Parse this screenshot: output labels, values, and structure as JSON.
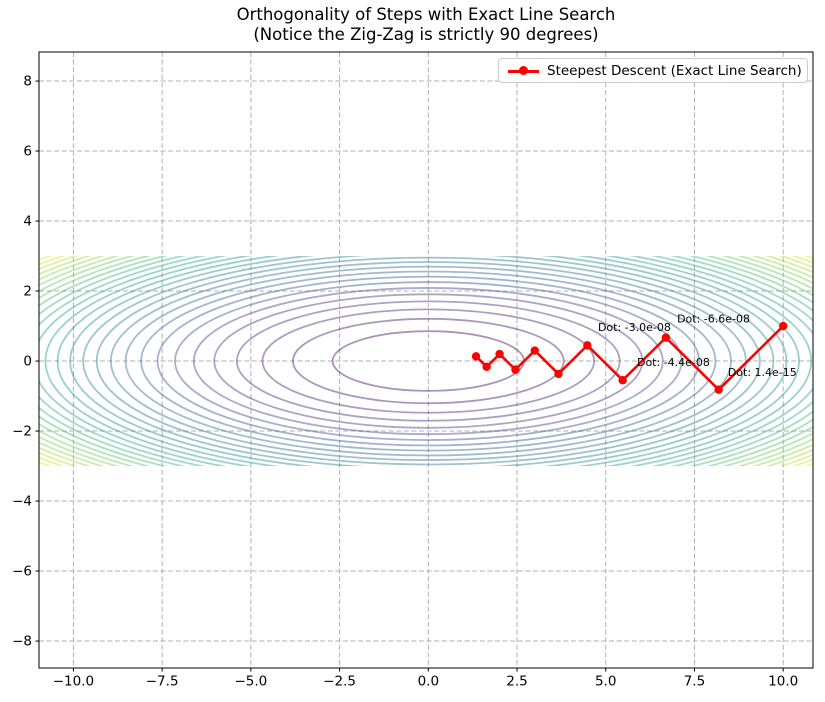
{
  "figure": {
    "title_line1": "Orthogonality of Steps with Exact Line Search",
    "title_line2": "(Notice the Zig-Zag is strictly 90 degrees)",
    "background_color": "#ffffff",
    "text_color": "#000000"
  },
  "chart_data": {
    "type": "line",
    "title": "Orthogonality of Steps with Exact Line Search\n(Notice the Zig-Zag is strictly 90 degrees)",
    "xlabel": "",
    "ylabel": "",
    "xlim": [
      -10.97,
      10.84
    ],
    "ylim": [
      -8.77,
      8.83
    ],
    "x_ticks": [
      -10.0,
      -7.5,
      -5.0,
      -2.5,
      0.0,
      2.5,
      5.0,
      7.5,
      10.0
    ],
    "x_tick_labels": [
      "−10.0",
      "−7.5",
      "−5.0",
      "−2.5",
      "0.0",
      "2.5",
      "5.0",
      "7.5",
      "10.0"
    ],
    "y_ticks": [
      -8,
      -6,
      -4,
      -2,
      0,
      2,
      4,
      6,
      8
    ],
    "y_tick_labels": [
      "−8",
      "−6",
      "−4",
      "−2",
      "0",
      "2",
      "4",
      "6",
      "8"
    ],
    "grid": {
      "on": true,
      "linestyle": "dashed",
      "color": "#b0b0b0"
    },
    "contours": {
      "function": "f(x,y) = x^2 + 10*y^2",
      "domain_x": [
        -11,
        11
      ],
      "domain_y": [
        -3,
        3
      ],
      "level_min": 7.28,
      "level_max": 211,
      "level_count": 29,
      "ellipse_y_ratio": 10,
      "colormap": "viridis",
      "colormap_stops": [
        "#440154",
        "#482878",
        "#3e4a89",
        "#31688e",
        "#26828e",
        "#1f9e89",
        "#35b779",
        "#6ece58",
        "#b5de2b",
        "#fde725"
      ],
      "line_opacity": 0.45,
      "line_width": 1.8
    },
    "series": [
      {
        "name": "Steepest Descent (Exact Line Search)",
        "color": "#ff0000",
        "marker": "circle",
        "marker_radius": 4.2,
        "line_width": 2.6,
        "points": [
          [
            10.0,
            1.0
          ],
          [
            8.182,
            -0.818
          ],
          [
            6.694,
            0.669
          ],
          [
            5.477,
            -0.548
          ],
          [
            4.481,
            0.448
          ],
          [
            3.667,
            -0.367
          ],
          [
            3.0,
            0.3
          ],
          [
            2.455,
            -0.245
          ],
          [
            2.009,
            0.201
          ],
          [
            1.644,
            -0.164
          ],
          [
            1.345,
            0.134
          ]
        ]
      }
    ],
    "annotations": [
      {
        "text": "Dot: -3.0e-08",
        "x": 4.78,
        "y": 0.94
      },
      {
        "text": "Dot: -6.6e-08",
        "x": 7.01,
        "y": 1.19
      },
      {
        "text": "Dot: -4.4e-08",
        "x": 5.88,
        "y": -0.06
      },
      {
        "text": "Dot: 1.4e-15",
        "x": 8.44,
        "y": -0.34
      }
    ],
    "legend": {
      "position": "upper right",
      "label": "Steepest Descent (Exact Line Search)"
    }
  }
}
